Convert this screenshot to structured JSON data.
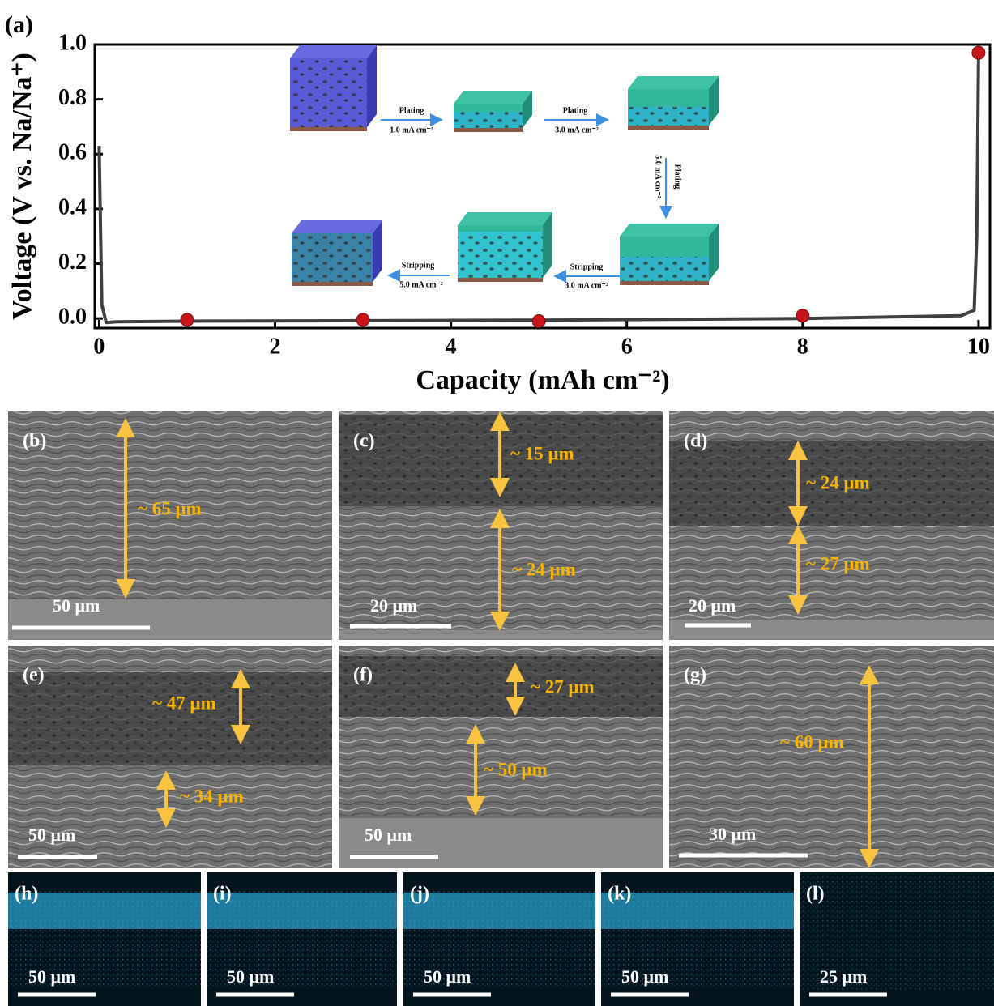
{
  "chart_data": {
    "type": "line",
    "panel_label": "(a)",
    "xlabel": "Capacity (mAh cm⁻²)",
    "ylabel": "Voltage (V vs. Na/Na⁺)",
    "xlim": [
      -0.05,
      10.13
    ],
    "ylim": [
      -0.035,
      1.0
    ],
    "xticks": [
      0,
      2,
      4,
      6,
      8,
      10
    ],
    "yticks": [
      {
        "value": 0,
        "label": "0.0"
      },
      0.2,
      0.4,
      0.6,
      0.8,
      {
        "value": 1,
        "label": "1.0"
      }
    ],
    "x": [
      0,
      0.03,
      0.08,
      0.2,
      1,
      3,
      5,
      8,
      9.8,
      9.95,
      9.98,
      10.0
    ],
    "values": [
      0.63,
      0.05,
      -0.015,
      -0.012,
      -0.01,
      -0.008,
      -0.006,
      0.0,
      0.01,
      0.03,
      0.3,
      0.97
    ],
    "color": "#404040",
    "points": {
      "x": [
        1,
        3,
        5,
        8,
        10
      ],
      "values": [
        -0.005,
        -0.005,
        -0.01,
        0.01,
        0.97
      ],
      "color": "#c4161c"
    },
    "inset": [
      {
        "process": "Plating",
        "current": "1.0 mA cm⁻²"
      },
      {
        "process": "Plating",
        "current": "3.0 mA cm⁻²"
      },
      {
        "process": "Plating",
        "current": "5.0 mA cm⁻²"
      },
      {
        "process": "Stripping",
        "current": "3.0 mA cm⁻²"
      },
      {
        "process": "Stripping",
        "current": "5.0 mA cm⁻²"
      }
    ]
  },
  "sem_panels": [
    {
      "label": "(b)",
      "scale": "50 μm",
      "thickness": [
        "~ 65 μm"
      ]
    },
    {
      "label": "(c)",
      "scale": "20 μm",
      "thickness": [
        "~ 15 μm",
        "~ 24 μm"
      ]
    },
    {
      "label": "(d)",
      "scale": "20 μm",
      "thickness": [
        "~ 24 μm",
        "~ 27 μm"
      ]
    },
    {
      "label": "(e)",
      "scale": "50 μm",
      "thickness": [
        "~ 47 μm",
        "~ 34 μm"
      ]
    },
    {
      "label": "(f)",
      "scale": "50 μm",
      "thickness": [
        "~ 27 μm",
        "~ 50 μm"
      ]
    },
    {
      "label": "(g)",
      "scale": "30 μm",
      "thickness": [
        "~ 60 μm"
      ]
    }
  ],
  "eds_panels": [
    {
      "label": "(h)",
      "scale": "50 μm"
    },
    {
      "label": "(i)",
      "scale": "50 μm"
    },
    {
      "label": "(j)",
      "scale": "50 μm"
    },
    {
      "label": "(k)",
      "scale": "50 μm"
    },
    {
      "label": "(l)",
      "scale": "25 μm"
    }
  ]
}
